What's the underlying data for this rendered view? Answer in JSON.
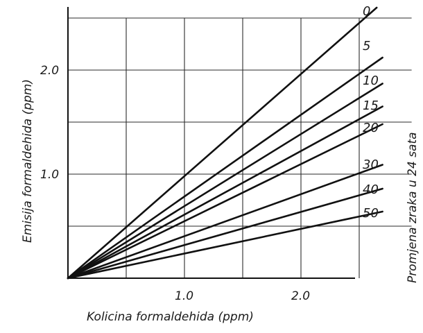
{
  "chart_data": {
    "type": "line",
    "xlabel": "Kolicina formaldehida (ppm)",
    "ylabel": "Emisija formaldehida (ppm)",
    "right_label": "Promjena zraka u 24 sata",
    "xlim": [
      0,
      2.8
    ],
    "ylim": [
      0,
      2.6
    ],
    "x_ticks": [
      {
        "value": 1.0,
        "label": "1.0"
      },
      {
        "value": 2.0,
        "label": "2.0"
      }
    ],
    "y_ticks": [
      {
        "value": 1.0,
        "label": "1.0"
      },
      {
        "value": 2.0,
        "label": "2.0"
      }
    ],
    "x_grid": [
      0.5,
      1.0,
      1.5,
      2.0,
      2.5
    ],
    "y_grid": [
      0.5,
      1.0,
      1.5,
      2.0,
      2.5
    ],
    "grid": true,
    "series": [
      {
        "name": "0",
        "x": [
          0,
          2.65
        ],
        "y": [
          0,
          2.6
        ]
      },
      {
        "name": "5",
        "x": [
          0,
          2.7
        ],
        "y": [
          0,
          2.12
        ]
      },
      {
        "name": "10",
        "x": [
          0,
          2.7
        ],
        "y": [
          0,
          1.87
        ]
      },
      {
        "name": "15",
        "x": [
          0,
          2.7
        ],
        "y": [
          0,
          1.65
        ]
      },
      {
        "name": "20",
        "x": [
          0,
          2.7
        ],
        "y": [
          0,
          1.48
        ]
      },
      {
        "name": "30",
        "x": [
          0,
          2.7
        ],
        "y": [
          0,
          1.09
        ]
      },
      {
        "name": "40",
        "x": [
          0,
          2.7
        ],
        "y": [
          0,
          0.86
        ]
      },
      {
        "name": "50",
        "x": [
          0,
          2.7
        ],
        "y": [
          0,
          0.64
        ]
      }
    ],
    "series_labels": [
      "0",
      "5",
      "10",
      "15",
      "20",
      "30",
      "40",
      "50"
    ]
  }
}
